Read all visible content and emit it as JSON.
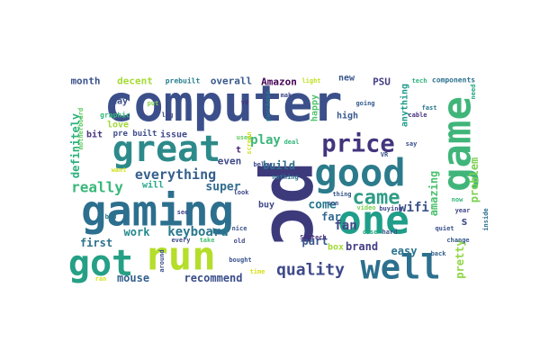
{
  "words": [
    {
      "text": "computer",
      "color": "#3b4f8a"
    },
    {
      "text": "pc",
      "color": "#3d3a7c"
    },
    {
      "text": "game",
      "color": "#40b57a"
    },
    {
      "text": "gaming",
      "color": "#2c6f8e"
    },
    {
      "text": "great",
      "color": "#2d8a8a"
    },
    {
      "text": "good",
      "color": "#2b7b8c"
    },
    {
      "text": "one",
      "color": "#1f9e89"
    },
    {
      "text": "run",
      "color": "#b5de2b"
    },
    {
      "text": "got",
      "color": "#25a086"
    },
    {
      "text": "well",
      "color": "#2d708e"
    },
    {
      "text": "price",
      "color": "#44347c"
    },
    {
      "text": "came",
      "color": "#2f9c87"
    },
    {
      "text": "quality",
      "color": "#3e4a89"
    },
    {
      "text": "everything",
      "color": "#355f8d"
    },
    {
      "text": "keyboard",
      "color": "#2a788e"
    },
    {
      "text": "really",
      "color": "#38b87a"
    },
    {
      "text": "recommend",
      "color": "#3c4e8b"
    },
    {
      "text": "mouse",
      "color": "#35618d"
    },
    {
      "text": "play",
      "color": "#3bb67b"
    },
    {
      "text": "fan",
      "color": "#3f4788"
    },
    {
      "text": "super",
      "color": "#2f6c8e"
    },
    {
      "text": "wifi",
      "color": "#3b528b"
    },
    {
      "text": "part",
      "color": "#39568c"
    },
    {
      "text": "come",
      "color": "#2a788e"
    },
    {
      "text": "far",
      "color": "#31688e"
    },
    {
      "text": "brand",
      "color": "#433e85"
    },
    {
      "text": "amazing",
      "color": "#4ac16d"
    },
    {
      "text": "definitely",
      "color": "#2db27d"
    },
    {
      "text": "problem",
      "color": "#7ad151"
    },
    {
      "text": "pretty",
      "color": "#8fd744"
    },
    {
      "text": "build",
      "color": "#2e6f8e"
    },
    {
      "text": "even",
      "color": "#3e4989"
    },
    {
      "text": "first",
      "color": "#2c728e"
    },
    {
      "text": "work",
      "color": "#23898e"
    },
    {
      "text": "easy",
      "color": "#2c738e"
    },
    {
      "text": "decent",
      "color": "#a5db36"
    },
    {
      "text": "month",
      "color": "#3b528b"
    },
    {
      "text": "overall",
      "color": "#38598c"
    },
    {
      "text": "Amazon",
      "color": "#440154"
    },
    {
      "text": "issue",
      "color": "#3f4889"
    },
    {
      "text": "love",
      "color": "#a0da39"
    },
    {
      "text": "bit",
      "color": "#46337e"
    },
    {
      "text": "day",
      "color": "#3c4f8a"
    },
    {
      "text": "will",
      "color": "#21a685"
    },
    {
      "text": "happy",
      "color": "#4ec36b"
    },
    {
      "text": "high",
      "color": "#37598c"
    },
    {
      "text": "anything",
      "color": "#1e9b8a"
    },
    {
      "text": "PSU",
      "color": "#433e85"
    },
    {
      "text": "new",
      "color": "#39568c"
    },
    {
      "text": "s",
      "color": "#3d4e8a"
    },
    {
      "text": "t",
      "color": "#482475"
    },
    {
      "text": "buy",
      "color": "#3f4889"
    },
    {
      "text": "box",
      "color": "#a2da37"
    },
    {
      "text": "prebuilt",
      "color": "#277e8e"
    },
    {
      "text": "components",
      "color": "#2c728e"
    },
    {
      "text": "light",
      "color": "#c2df23"
    },
    {
      "text": "tech",
      "color": "#2eb37c"
    },
    {
      "text": "make",
      "color": "#3e4c8a"
    },
    {
      "text": "going",
      "color": "#355e8d"
    },
    {
      "text": "graphic",
      "color": "#34b679"
    },
    {
      "text": "put",
      "color": "#7fd34e"
    },
    {
      "text": "lag",
      "color": "#3e4a89"
    },
    {
      "text": "pre built",
      "color": "#3e4c8a"
    },
    {
      "text": "want",
      "color": "#d0e11c"
    },
    {
      "text": "nothing",
      "color": "#2c718e"
    },
    {
      "text": "look",
      "color": "#3f4889"
    },
    {
      "text": "nice",
      "color": "#3a538b"
    },
    {
      "text": "see",
      "color": "#3e4a89"
    },
    {
      "text": "thing",
      "color": "#38588c"
    },
    {
      "text": "son",
      "color": "#39568c"
    },
    {
      "text": "video",
      "color": "#7ad151"
    },
    {
      "text": "buying",
      "color": "#3f4788"
    },
    {
      "text": "quiet",
      "color": "#3b528b"
    },
    {
      "text": "fast",
      "color": "#2a768e"
    },
    {
      "text": "cable",
      "color": "#46327e"
    },
    {
      "text": "say",
      "color": "#3c508b"
    },
    {
      "text": "Skytech",
      "color": "#46307e"
    },
    {
      "text": "old",
      "color": "#3f4788"
    },
    {
      "text": "bought",
      "color": "#3a548c"
    },
    {
      "text": "time",
      "color": "#d8e219"
    },
    {
      "text": "hard",
      "color": "#3b528b"
    },
    {
      "text": "case",
      "color": "#25ab82"
    },
    {
      "text": "year",
      "color": "#3f4788"
    },
    {
      "text": "change",
      "color": "#38598c"
    },
    {
      "text": "back",
      "color": "#34618d"
    },
    {
      "text": "inside",
      "color": "#2c718e"
    },
    {
      "text": "bad",
      "color": "#2b748e"
    },
    {
      "text": "ran",
      "color": "#d5e21a"
    },
    {
      "text": "every",
      "color": "#3e4a89"
    },
    {
      "text": "take",
      "color": "#43bf71"
    },
    {
      "text": "around",
      "color": "#3c4f8a"
    },
    {
      "text": "deal",
      "color": "#31b57b"
    },
    {
      "text": "used",
      "color": "#63cb5f"
    },
    {
      "text": "now",
      "color": "#35b779"
    },
    {
      "text": "need",
      "color": "#22a785"
    },
    {
      "text": "VR",
      "color": "#3b528b"
    },
    {
      "text": "motherboard",
      "color": "#60ca60"
    },
    {
      "text": "purchase",
      "color": "#2a788e"
    },
    {
      "text": "screen",
      "color": "#cde11d"
    },
    {
      "text": "below",
      "color": "#3d4d8a"
    },
    {
      "text": "v0",
      "color": "#46327e"
    }
  ]
}
